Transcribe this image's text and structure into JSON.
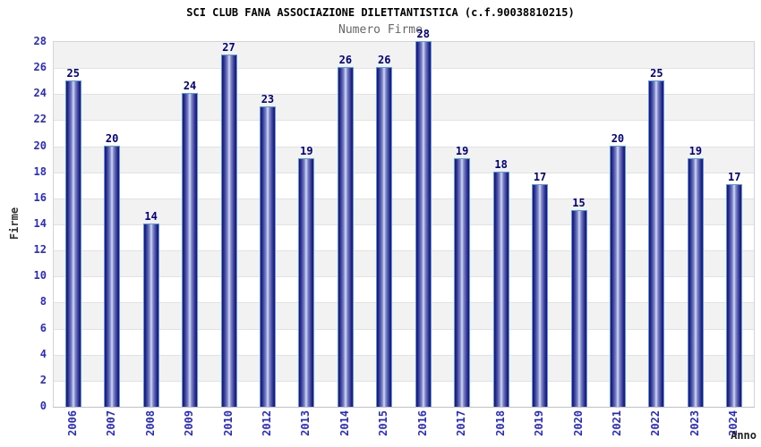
{
  "chart_data": {
    "type": "bar",
    "title": "SCI CLUB FANA ASSOCIAZIONE DILETTANTISTICA (c.f.90038810215)",
    "subtitle": "Numero Firme",
    "xlabel": "Anno",
    "ylabel": "Firme",
    "categories": [
      "2006",
      "2007",
      "2008",
      "2009",
      "2010",
      "2012",
      "2013",
      "2014",
      "2015",
      "2016",
      "2017",
      "2018",
      "2019",
      "2020",
      "2021",
      "2022",
      "2023",
      "2024"
    ],
    "values": [
      25,
      20,
      14,
      24,
      27,
      23,
      19,
      26,
      26,
      28,
      19,
      18,
      17,
      15,
      20,
      25,
      19,
      17
    ],
    "ylim": [
      0,
      28
    ],
    "ytick_step": 2,
    "grid": "horizontal-bands",
    "legend": "none",
    "colors": {
      "bar_edge": "#17176e",
      "bar_mid": "#7e89c8",
      "bar_highlight": "#d6dcf4",
      "bar_border": "#5b9be0",
      "tick_label": "#2a2acc",
      "value_label": "#000080",
      "title": "#000000",
      "subtitle": "#666666",
      "band_gray": "#f2f2f2",
      "band_white": "#ffffff",
      "grid_line": "#e2e2e2",
      "axis_line": "#c0c0cc"
    }
  }
}
